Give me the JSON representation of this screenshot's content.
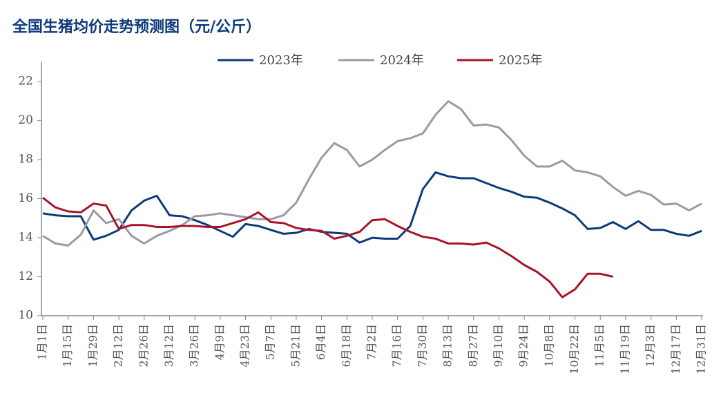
{
  "chart_data": {
    "type": "line",
    "title": "全国生猪均价走势预测图（元/公斤）",
    "categories": [
      "1月1日",
      null,
      "1月15日",
      null,
      "1月29日",
      null,
      "2月12日",
      null,
      "2月26日",
      null,
      "3月12日",
      null,
      "3月26日",
      null,
      "4月9日",
      null,
      "4月23日",
      null,
      "5月7日",
      null,
      "5月21日",
      null,
      "6月4日",
      null,
      "6月18日",
      null,
      "7月2日",
      null,
      "7月16日",
      null,
      "7月30日",
      null,
      "8月13日",
      null,
      "8月27日",
      null,
      "9月10日",
      null,
      "9月24日",
      null,
      "10月8日",
      null,
      "10月22日",
      null,
      "11月5日",
      null,
      "11月19日",
      null,
      "12月3日",
      null,
      "12月17日",
      null,
      "12月31日"
    ],
    "series": [
      {
        "name": "2023年",
        "color": "#0d3a7a",
        "values": [
          15.25,
          15.15,
          15.1,
          15.1,
          13.9,
          14.1,
          14.4,
          15.4,
          15.9,
          16.15,
          15.15,
          15.1,
          14.9,
          14.65,
          14.35,
          14.05,
          14.7,
          14.6,
          14.4,
          14.2,
          14.25,
          14.45,
          14.3,
          14.25,
          14.2,
          13.75,
          14.0,
          13.95,
          13.95,
          14.6,
          16.5,
          17.35,
          17.15,
          17.05,
          17.05,
          16.8,
          16.55,
          16.35,
          16.1,
          16.05,
          15.8,
          15.5,
          15.15,
          14.45,
          14.5,
          14.8,
          14.45,
          14.85,
          14.4,
          14.4,
          14.2,
          14.1,
          14.35
        ]
      },
      {
        "name": "2024年",
        "color": "#9a9aa6",
        "values": [
          14.1,
          13.7,
          13.6,
          14.15,
          15.4,
          14.75,
          14.95,
          14.1,
          13.7,
          14.1,
          14.35,
          14.65,
          15.1,
          15.15,
          15.25,
          15.15,
          15.05,
          14.95,
          14.95,
          15.15,
          15.8,
          17.0,
          18.1,
          18.85,
          18.5,
          17.65,
          18.0,
          18.5,
          18.95,
          19.1,
          19.35,
          20.3,
          21.0,
          20.6,
          19.75,
          19.8,
          19.65,
          19.0,
          18.2,
          17.65,
          17.65,
          17.95,
          17.45,
          17.35,
          17.15,
          16.6,
          16.15,
          16.4,
          16.2,
          15.7,
          15.75,
          15.4,
          15.75
        ]
      },
      {
        "name": "2025年",
        "color": "#a8142a",
        "values": [
          16.05,
          15.55,
          15.35,
          15.3,
          15.75,
          15.65,
          14.45,
          14.65,
          14.65,
          14.55,
          14.55,
          14.6,
          14.6,
          14.55,
          14.55,
          14.75,
          14.95,
          15.3,
          14.8,
          14.75,
          14.5,
          14.4,
          14.35,
          13.95,
          14.1,
          14.3,
          14.9,
          14.95,
          14.6,
          14.3,
          14.05,
          13.95,
          13.7,
          13.7,
          13.65,
          13.75,
          13.45,
          13.05,
          12.6,
          12.25,
          11.75,
          10.95,
          11.35,
          12.15,
          12.15,
          12.0,
          null,
          null,
          null,
          null,
          null,
          null,
          null
        ]
      }
    ],
    "ylim": [
      10,
      23
    ],
    "yticks": [
      10,
      12,
      14,
      16,
      18,
      20,
      22
    ],
    "grid": false,
    "legend": "top"
  }
}
